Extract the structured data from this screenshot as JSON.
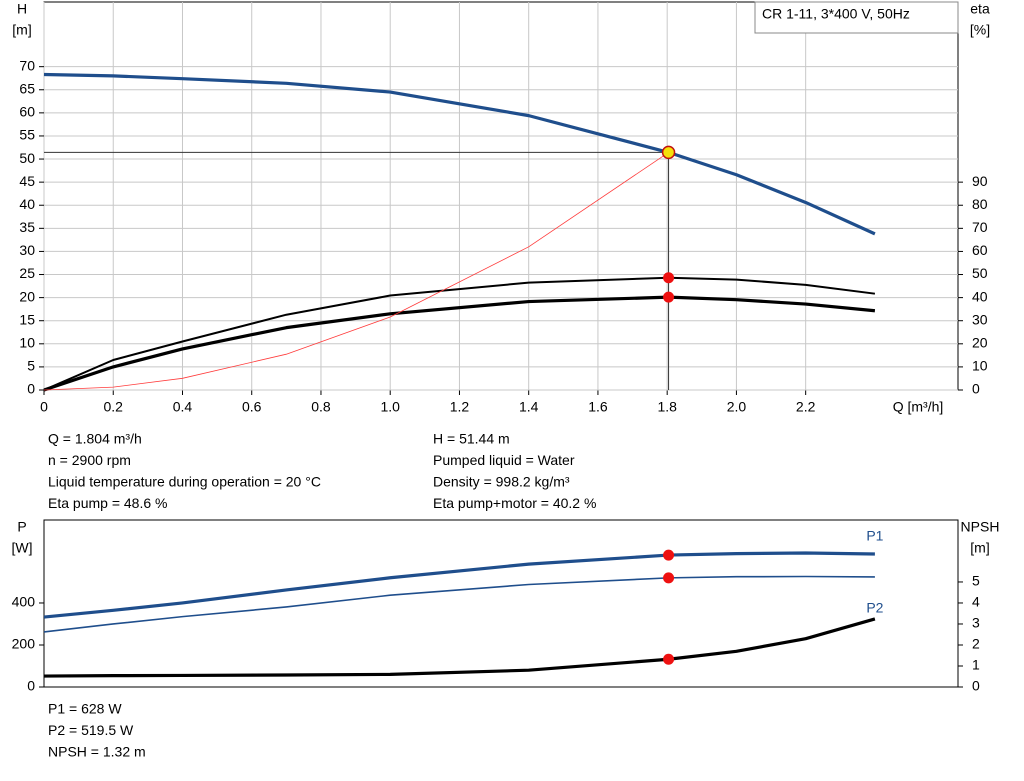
{
  "chart_data": [
    {
      "type": "line",
      "title": "CR 1-11, 3*400 V, 50Hz",
      "y_label": "H",
      "y_unit": "[m]",
      "y2_label": "eta",
      "y2_unit": "[%]",
      "x_label": "Q [m³/h]",
      "xlim": [
        0,
        2.64
      ],
      "xticks": [
        0,
        0.2,
        0.4,
        0.6,
        0.8,
        {
          "value": 1,
          "label": "1.0"
        },
        1.2,
        1.4,
        1.6,
        1.8,
        {
          "value": 2,
          "label": "2.0"
        },
        2.2
      ],
      "ylim": [
        0,
        84
      ],
      "yticks": [
        0,
        5,
        10,
        15,
        20,
        25,
        30,
        35,
        40,
        45,
        50,
        55,
        60,
        65,
        70
      ],
      "y2lim": [
        0,
        168
      ],
      "y2ticks": [
        0,
        10,
        20,
        30,
        40,
        50,
        60,
        70,
        80,
        90
      ],
      "grid": true,
      "x": [
        0,
        0.2,
        0.4,
        0.7,
        1,
        1.4,
        1.804,
        2,
        2.2,
        2.4
      ],
      "series": [
        {
          "color": "#1f4e8c",
          "axis": "y",
          "values": [
            68.3,
            68.0,
            67.4,
            66.4,
            64.5,
            59.4,
            51.44,
            46.6,
            40.6,
            33.8
          ]
        },
        {
          "color": "#000000",
          "axis": "y2",
          "values": [
            0,
            13,
            21,
            32.6,
            40.9,
            46.5,
            48.6,
            47.8,
            45.5,
            41.7
          ]
        },
        {
          "color": "#000000",
          "axis": "y2",
          "values": [
            0,
            10,
            17.8,
            27,
            33,
            38.3,
            40.2,
            39.1,
            37.2,
            34.3
          ]
        },
        {
          "color": "#ff3b3b",
          "axis": "y",
          "values": [
            0,
            0.63,
            2.53,
            7.75,
            15.81,
            31.0,
            51.44,
            null,
            null,
            null
          ]
        }
      ],
      "operating_point": {
        "x": 1.804,
        "guide_lines": true,
        "marks": [
          {
            "value": 51.44,
            "axis": "y",
            "color": "#f5e10a"
          },
          {
            "value": 48.6,
            "axis": "y2",
            "color": "#ee1111"
          },
          {
            "value": 40.2,
            "axis": "y2",
            "color": "#ee1111"
          }
        ]
      },
      "annotations": [
        "Q = 1.804 m³/h",
        "n = 2900 rpm",
        "Liquid temperature during operation = 20 °C",
        "Eta pump = 48.6 %",
        "H = 51.44 m",
        "Pumped liquid = Water",
        "Density = 998.2 kg/m³",
        "Eta pump+motor = 40.2 %"
      ]
    },
    {
      "type": "line",
      "y_label": "P",
      "y_unit": "[W]",
      "y2_label": "NPSH",
      "y2_unit": "[m]",
      "xlim": [
        0,
        2.64
      ],
      "ylim": [
        0,
        795
      ],
      "yticks": [
        0,
        200,
        400
      ],
      "y2lim": [
        0,
        7.95
      ],
      "y2ticks": [
        0,
        1,
        2,
        3,
        4,
        5
      ],
      "grid": false,
      "x": [
        0,
        0.2,
        0.4,
        0.7,
        1,
        1.4,
        1.804,
        2,
        2.2,
        2.4
      ],
      "series": [
        {
          "name": "P1",
          "color": "#1f4e8c",
          "axis": "y",
          "values": [
            333,
            365,
            400,
            462,
            520,
            585,
            628,
            635,
            638,
            633
          ]
        },
        {
          "name": "P2",
          "color": "#1f4e8c",
          "axis": "y",
          "values": [
            262,
            300,
            335,
            381,
            437,
            488,
            519.5,
            525,
            526,
            524
          ]
        },
        {
          "color": "#000000",
          "axis": "y2",
          "values": [
            0.52,
            0.54,
            0.55,
            0.57,
            0.6,
            0.8,
            1.32,
            1.7,
            2.3,
            3.24
          ]
        }
      ],
      "operating_point": {
        "x": 1.804,
        "guide_lines": false,
        "marks": [
          {
            "value": 628,
            "axis": "y",
            "color": "#ee1111"
          },
          {
            "value": 519.5,
            "axis": "y",
            "color": "#ee1111"
          },
          {
            "value": 1.32,
            "axis": "y2",
            "color": "#ee1111"
          }
        ]
      },
      "annotations": [
        "P1 = 628 W",
        "P2 = 519.5 W",
        "NPSH = 1.32 m"
      ]
    }
  ]
}
